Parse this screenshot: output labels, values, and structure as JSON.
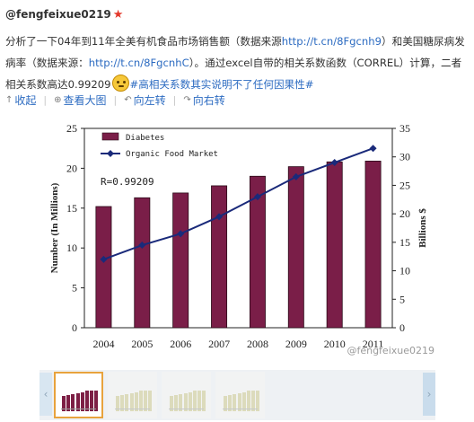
{
  "post": {
    "author": "@fengfeixue0219",
    "star_icon": "red-star-icon",
    "text_1": "分析了一下04年到11年全美有机食品市场销售额（数据来源",
    "link_1": "http://t.cn/8Fgcnh9",
    "text_2": "）和美国糖尿病发病率（数据来源：",
    "link_2": "http://t.cn/8FgcnhC",
    "text_3": "）。通过excel自带的相关系数函数（CORREL）计算，二者相关系数高达0.99209",
    "emoji": "smiley-emoji-icon",
    "hashtag": "#高相关系数其实说明不了任何因果性#"
  },
  "actions": {
    "collapse": "收起",
    "view_large": "查看大图",
    "rotate_left": "向左转",
    "rotate_right": "向右转"
  },
  "watermark": "@fengfeixue0219",
  "gallery": {
    "left_arrow": "‹",
    "right_arrow": "›"
  },
  "chart_data": {
    "type": "bar",
    "categories": [
      "2004",
      "2005",
      "2006",
      "2007",
      "2008",
      "2009",
      "2010",
      "2011"
    ],
    "series": [
      {
        "name": "Diabetes",
        "kind": "bar",
        "axis": "left",
        "color": "#7a1e48",
        "values": [
          15.2,
          16.3,
          16.9,
          17.8,
          19.0,
          20.2,
          20.8,
          20.9
        ]
      },
      {
        "name": "Organic Food Market",
        "kind": "line",
        "axis": "right",
        "color": "#1a2a7a",
        "values": [
          12.0,
          14.5,
          16.5,
          19.5,
          23.0,
          26.5,
          29.0,
          31.5
        ]
      }
    ],
    "annotation": "R=0.99209",
    "ylabel": "Number (In Millions)",
    "y2label": "Billions $",
    "xlabel": "",
    "ylim": [
      0,
      25
    ],
    "y2lim": [
      0,
      35
    ],
    "yticks": [
      "0",
      "5",
      "10",
      "15",
      "20",
      "25"
    ],
    "y2ticks": [
      "0",
      "5",
      "10",
      "15",
      "20",
      "25",
      "30",
      "35"
    ],
    "legend_position": "top-left",
    "grid": false
  }
}
